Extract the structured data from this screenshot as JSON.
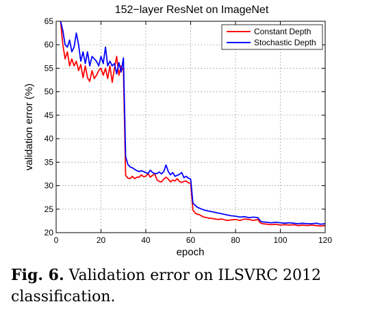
{
  "chart_data": {
    "type": "line",
    "title": "152−layer ResNet on ImageNet",
    "xlabel": "epoch",
    "ylabel": "validation error (%)",
    "xlim": [
      0,
      120
    ],
    "ylim": [
      20,
      65
    ],
    "xticks": [
      0,
      20,
      40,
      60,
      80,
      100,
      120
    ],
    "yticks": [
      20,
      25,
      30,
      35,
      40,
      45,
      50,
      55,
      60,
      65
    ],
    "grid": true,
    "legend": "top-right",
    "series": [
      {
        "name": "Constant Depth",
        "color": "#ff0000",
        "x": [
          2,
          3,
          4,
          5,
          6,
          7,
          8,
          9,
          10,
          11,
          12,
          13,
          14,
          15,
          16,
          17,
          18,
          19,
          20,
          21,
          22,
          23,
          24,
          25,
          26,
          27,
          28,
          29,
          30,
          31,
          32,
          33,
          34,
          35,
          36,
          37,
          38,
          39,
          40,
          41,
          42,
          43,
          44,
          45,
          46,
          47,
          48,
          49,
          50,
          51,
          52,
          53,
          54,
          55,
          56,
          57,
          58,
          59,
          60,
          61,
          62,
          63,
          64,
          65,
          66,
          68,
          70,
          72,
          74,
          76,
          78,
          80,
          82,
          84,
          86,
          88,
          90,
          91,
          92,
          94,
          96,
          98,
          100,
          102,
          104,
          106,
          108,
          110,
          112,
          114,
          116,
          118,
          120
        ],
        "values": [
          65,
          60,
          57,
          58.5,
          55.5,
          57,
          55.5,
          56.5,
          54.5,
          55.8,
          53,
          55.5,
          53,
          52.2,
          54.5,
          52.8,
          53.5,
          54.5,
          55,
          53.5,
          55,
          52.8,
          55.5,
          52,
          55,
          57.5,
          53.5,
          55.5,
          54.5,
          32.2,
          31.6,
          31.5,
          32,
          31.5,
          31.8,
          31.8,
          32.3,
          31.9,
          32,
          32.6,
          31.8,
          32.2,
          32.5,
          31.2,
          30.9,
          30.8,
          31.4,
          31.8,
          31.4,
          30.8,
          31.2,
          31,
          31.5,
          30.9,
          30.7,
          30.9,
          31,
          30.6,
          30.5,
          24.8,
          24.2,
          23.9,
          23.8,
          23.5,
          23.3,
          23.1,
          23,
          22.8,
          22.9,
          22.6,
          22.7,
          22.8,
          22.6,
          22.9,
          22.8,
          22.6,
          22.8,
          22.1,
          21.9,
          21.8,
          21.7,
          21.8,
          21.6,
          21.7,
          21.6,
          21.7,
          21.5,
          21.6,
          21.5,
          21.6,
          21.5,
          21.4,
          21.5
        ]
      },
      {
        "name": "Stochastic Depth",
        "color": "#0000ff",
        "x": [
          2,
          3,
          4,
          5,
          6,
          7,
          8,
          9,
          10,
          11,
          12,
          13,
          14,
          15,
          16,
          17,
          18,
          19,
          20,
          21,
          22,
          23,
          24,
          25,
          26,
          27,
          28,
          29,
          30,
          31,
          32,
          33,
          34,
          35,
          36,
          37,
          38,
          39,
          40,
          41,
          42,
          43,
          44,
          45,
          46,
          47,
          48,
          49,
          50,
          51,
          52,
          53,
          54,
          55,
          56,
          57,
          58,
          59,
          60,
          61,
          62,
          63,
          64,
          65,
          66,
          68,
          70,
          72,
          74,
          76,
          78,
          80,
          82,
          84,
          86,
          88,
          90,
          91,
          92,
          94,
          96,
          98,
          100,
          102,
          104,
          106,
          108,
          110,
          112,
          114,
          116,
          118,
          120
        ],
        "values": [
          65,
          63,
          60,
          59.5,
          61,
          58.5,
          59.5,
          62.5,
          60,
          56.5,
          58.5,
          56,
          58.5,
          55.5,
          57.5,
          57,
          56.5,
          55.5,
          57.5,
          56,
          59.5,
          55.5,
          56.5,
          55.5,
          56,
          53.8,
          56.2,
          54.2,
          57.2,
          36.2,
          34.5,
          34,
          33.8,
          33.5,
          33.2,
          33,
          33.2,
          33,
          32.8,
          32.6,
          33.3,
          32.8,
          32.6,
          32.6,
          32.9,
          32.5,
          33,
          34.4,
          33,
          32.3,
          32.8,
          32,
          32.2,
          32.4,
          32.8,
          31.7,
          32,
          31.6,
          31.4,
          26.3,
          25.8,
          25.4,
          25.2,
          25,
          24.8,
          24.6,
          24.4,
          24.2,
          24,
          23.8,
          23.6,
          23.5,
          23.3,
          23.4,
          23.2,
          23.3,
          23.2,
          22.5,
          22.3,
          22.2,
          22.1,
          22.2,
          22.1,
          22,
          22.1,
          22,
          21.9,
          22,
          21.9,
          21.9,
          22,
          21.8,
          21.9
        ]
      }
    ]
  },
  "caption": {
    "label": "Fig. 6.",
    "text": " Validation error on ILSVRC 2012 classification."
  }
}
